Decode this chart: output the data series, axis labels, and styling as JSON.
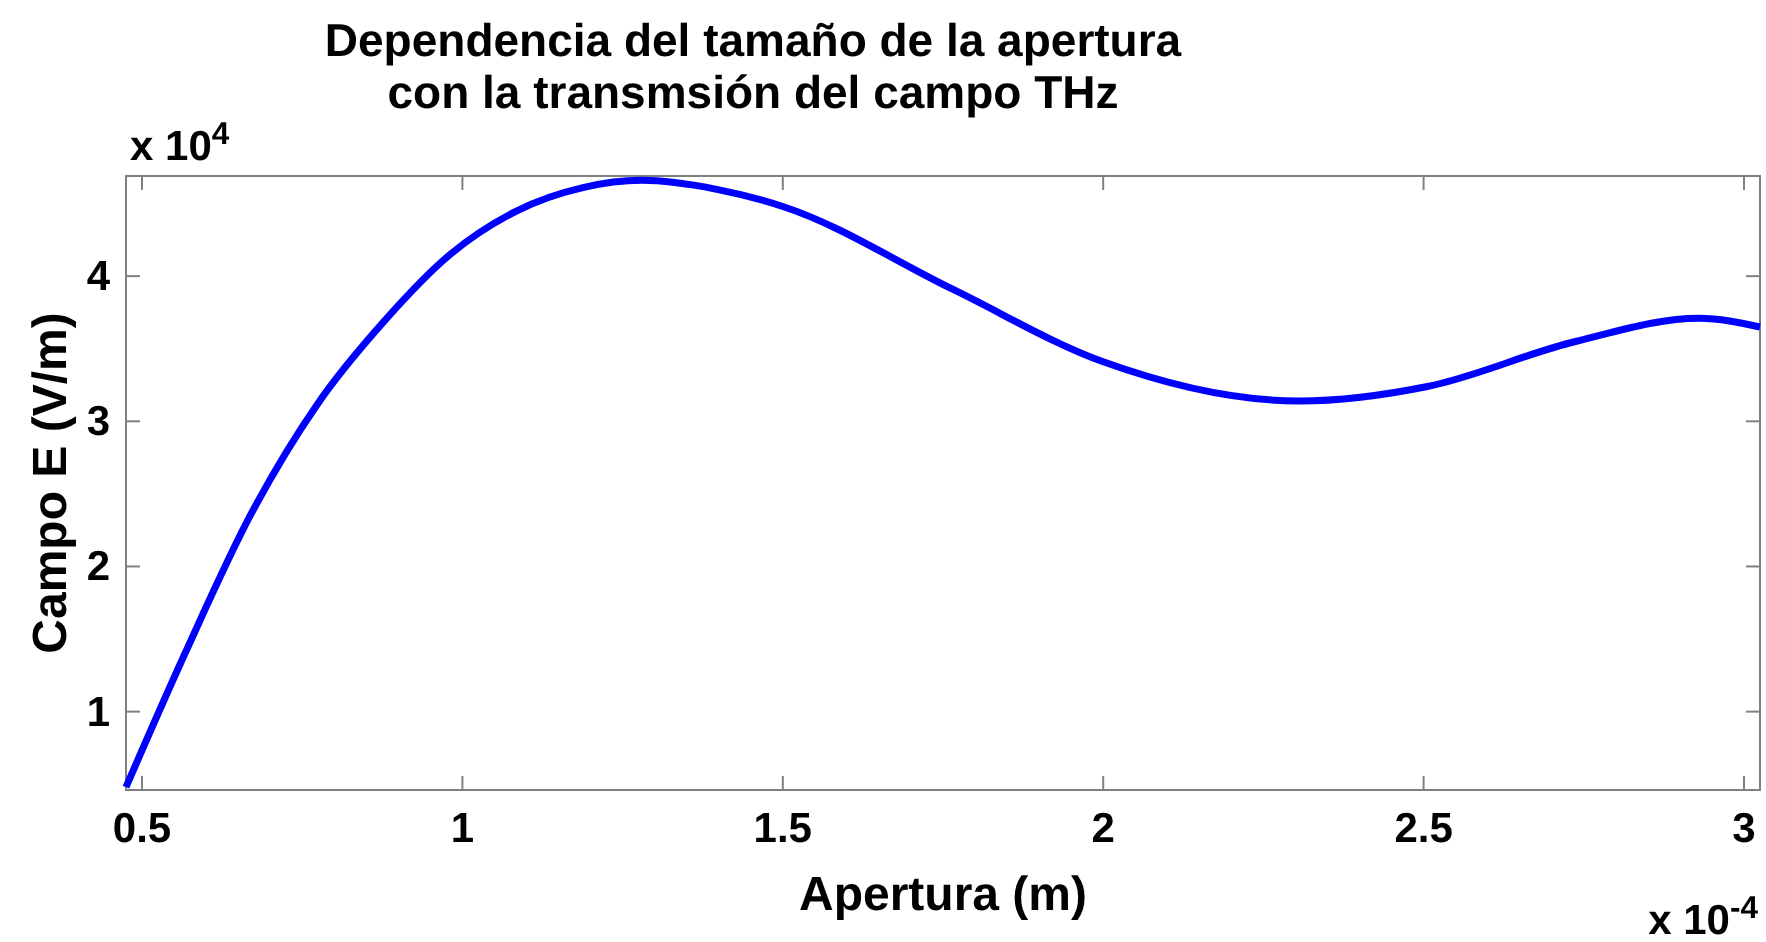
{
  "chart_data": {
    "type": "line",
    "title": "Dependencia del tamaño de la apertura\ncon la transmsión del campo THz",
    "xlabel": "Apertura (m)",
    "ylabel": "Campo E (V/m)",
    "annotations": [
      "x 10$^{4}$",
      "x 10$^{-4}$"
    ],
    "x": [
      0.475,
      0.567,
      0.67,
      0.774,
      0.878,
      0.981,
      1.085,
      1.188,
      1.28,
      1.395,
      1.5,
      1.765,
      2.0,
      2.305,
      2.506,
      2.737,
      2.93,
      3.025
    ],
    "series": [
      {
        "color": "#0000ff",
        "values": [
          0.48,
          1.4,
          2.36,
          3.12,
          3.69,
          4.15,
          4.45,
          4.61,
          4.66,
          4.6,
          4.48,
          3.91,
          3.41,
          3.14,
          3.24,
          3.55,
          3.71,
          3.65
        ]
      }
    ],
    "xlim": [
      0.475,
      3.025
    ],
    "ylim": [
      0.46,
      4.69
    ],
    "xticks": [
      0.5,
      1,
      1.5,
      2,
      2.5,
      3
    ],
    "yticks": [
      1,
      2,
      3,
      4
    ],
    "grid": false,
    "marker": "none",
    "line_style": "solid"
  }
}
